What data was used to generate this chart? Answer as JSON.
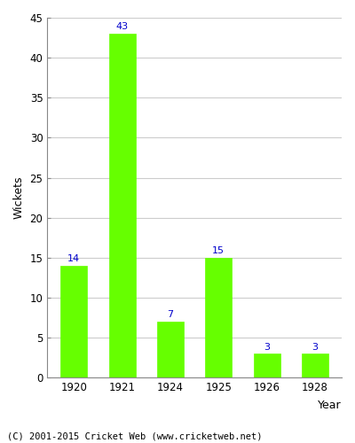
{
  "categories": [
    "1920",
    "1921",
    "1924",
    "1925",
    "1926",
    "1928"
  ],
  "values": [
    14,
    43,
    7,
    15,
    3,
    3
  ],
  "bar_color": "#66ff00",
  "bar_edgecolor": "#66ff00",
  "label_color": "#0000cc",
  "label_fontsize": 8,
  "xlabel": "Year",
  "ylabel": "Wickets",
  "ylim": [
    0,
    45
  ],
  "yticks": [
    0,
    5,
    10,
    15,
    20,
    25,
    30,
    35,
    40,
    45
  ],
  "footer": "(C) 2001-2015 Cricket Web (www.cricketweb.net)",
  "footer_fontsize": 7.5,
  "background_color": "#ffffff",
  "grid_color": "#cccccc",
  "axis_label_fontsize": 9,
  "tick_fontsize": 8.5
}
